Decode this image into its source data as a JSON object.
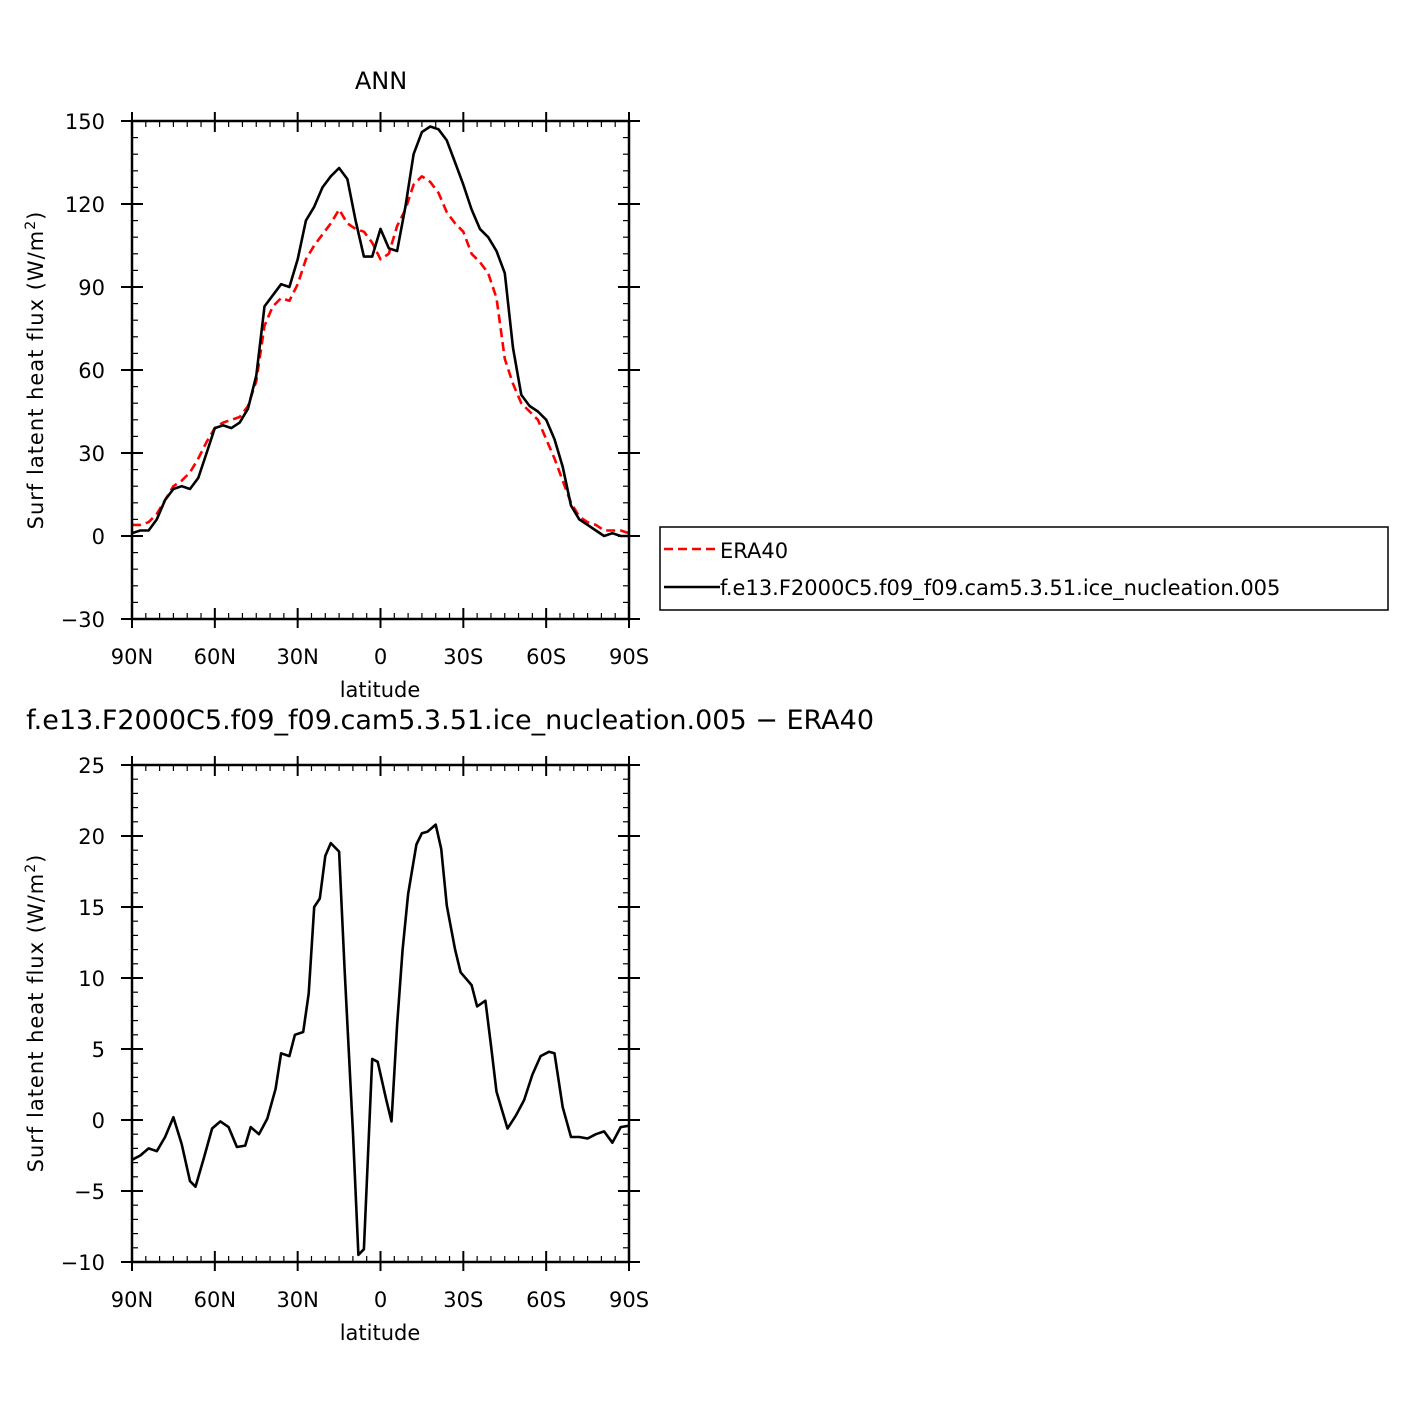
{
  "chart_data": [
    {
      "type": "line",
      "title": "ANN",
      "xlabel": "latitude",
      "ylabel": "Surf latent heat flux (W/m",
      "ylabel_sup": "2",
      "ylabel_tail": ")",
      "xlim": [
        90,
        -90
      ],
      "ylim": [
        -30,
        150
      ],
      "x_ticks": [
        {
          "value": 90,
          "label": "90N"
        },
        {
          "value": 60,
          "label": "60N"
        },
        {
          "value": 30,
          "label": "30N"
        },
        {
          "value": 0,
          "label": "0"
        },
        {
          "value": -30,
          "label": "30S"
        },
        {
          "value": -60,
          "label": "60S"
        },
        {
          "value": -90,
          "label": "90S"
        }
      ],
      "y_ticks": [
        {
          "value": 150,
          "label": "150"
        },
        {
          "value": 120,
          "label": "120"
        },
        {
          "value": 90,
          "label": "90"
        },
        {
          "value": 60,
          "label": "60"
        },
        {
          "value": 30,
          "label": "30"
        },
        {
          "value": 0,
          "label": "0"
        },
        {
          "value": -30,
          "label": "−30"
        }
      ],
      "series": [
        {
          "name": "ERA40",
          "color": "#ff0000",
          "dash": "dashed",
          "x": [
            90,
            87,
            84,
            81,
            78,
            75,
            72,
            69,
            66,
            63,
            60,
            57,
            54,
            51,
            48,
            45,
            42,
            39,
            36,
            33,
            30,
            27,
            24,
            21,
            18,
            15,
            12,
            9,
            6,
            3,
            0,
            -3,
            -6,
            -9,
            -12,
            -15,
            -18,
            -21,
            -24,
            -27,
            -30,
            -33,
            -36,
            -39,
            -42,
            -45,
            -48,
            -51,
            -54,
            -57,
            -60,
            -63,
            -66,
            -69,
            -72,
            -75,
            -78,
            -81,
            -84,
            -87,
            -90
          ],
          "values": [
            4,
            4,
            5,
            8,
            13,
            18,
            20,
            23,
            28,
            34,
            39,
            41,
            42,
            43,
            47,
            56,
            76,
            83,
            86,
            85,
            91,
            100,
            105,
            109,
            113,
            118,
            113,
            111,
            110,
            106,
            100,
            102,
            112,
            118,
            127,
            130,
            128,
            124,
            117,
            113,
            110,
            102,
            99,
            95,
            86,
            64,
            55,
            48,
            45,
            42,
            35,
            28,
            20,
            12,
            7,
            5,
            4,
            2,
            2,
            2,
            1
          ]
        },
        {
          "name": "f.e13.F2000C5.f09_f09.cam5.3.51.ice_nucleation.005",
          "color": "#000000",
          "dash": "solid",
          "x": [
            90,
            87,
            84,
            81,
            78,
            75,
            72,
            69,
            66,
            63,
            60,
            57,
            54,
            51,
            48,
            45,
            42,
            39,
            36,
            33,
            30,
            27,
            24,
            21,
            18,
            15,
            12,
            9,
            6,
            3,
            0,
            -3,
            -6,
            -9,
            -12,
            -15,
            -18,
            -21,
            -24,
            -27,
            -30,
            -33,
            -36,
            -39,
            -42,
            -45,
            -48,
            -51,
            -54,
            -57,
            -60,
            -63,
            -66,
            -69,
            -72,
            -75,
            -78,
            -81,
            -84,
            -87,
            -90
          ],
          "values": [
            1,
            2,
            2,
            6,
            13,
            17,
            18,
            17,
            21,
            30,
            39,
            40,
            39,
            41,
            46,
            58,
            83,
            87,
            91,
            90,
            100,
            114,
            119,
            126,
            130,
            133,
            129,
            114,
            101,
            101,
            111,
            104,
            103,
            119,
            138,
            146,
            148,
            147,
            143,
            135,
            127,
            118,
            111,
            108,
            103,
            95,
            68,
            51,
            47,
            45,
            42,
            35,
            25,
            11,
            6,
            4,
            2,
            0,
            1,
            0,
            0
          ]
        }
      ],
      "legend": {
        "placement": "right-of-plot"
      }
    },
    {
      "type": "line",
      "title": "f.e13.F2000C5.f09_f09.cam5.3.51.ice_nucleation.005 − ERA40",
      "xlabel": "latitude",
      "ylabel": "Surf latent heat flux (W/m",
      "ylabel_sup": "2",
      "ylabel_tail": ")",
      "xlim": [
        90,
        -90
      ],
      "ylim": [
        -10,
        25
      ],
      "x_ticks": [
        {
          "value": 90,
          "label": "90N"
        },
        {
          "value": 60,
          "label": "60N"
        },
        {
          "value": 30,
          "label": "30N"
        },
        {
          "value": 0,
          "label": "0"
        },
        {
          "value": -30,
          "label": "30S"
        },
        {
          "value": -60,
          "label": "60S"
        },
        {
          "value": -90,
          "label": "90S"
        }
      ],
      "y_ticks": [
        {
          "value": 25,
          "label": "25"
        },
        {
          "value": 20,
          "label": "20"
        },
        {
          "value": 15,
          "label": "15"
        },
        {
          "value": 10,
          "label": "10"
        },
        {
          "value": 5,
          "label": "5"
        },
        {
          "value": 0,
          "label": "0"
        },
        {
          "value": -5,
          "label": "−5"
        },
        {
          "value": -10,
          "label": "−10"
        }
      ],
      "series": [
        {
          "color": "#000000",
          "dash": "solid",
          "x": [
            90,
            87,
            84,
            81,
            78,
            75,
            72,
            69,
            67,
            64,
            61,
            58,
            55,
            52,
            49,
            47,
            44,
            41,
            38,
            36,
            33,
            31,
            28,
            26,
            24,
            22,
            20,
            18,
            15,
            13,
            10,
            8,
            6,
            3,
            1,
            -2,
            -4,
            -6,
            -8,
            -10,
            -13,
            -15,
            -17,
            -20,
            -22,
            -24,
            -27,
            -29,
            -33,
            -35,
            -38,
            -40,
            -42,
            -44,
            -46,
            -49,
            -52,
            -55,
            -58,
            -61,
            -63,
            -66,
            -69,
            -72,
            -75,
            -78,
            -81,
            -84,
            -87,
            -90
          ],
          "values": [
            -2.8,
            -2.5,
            -2.0,
            -2.2,
            -1.2,
            0.2,
            -1.7,
            -4.3,
            -4.7,
            -2.7,
            -0.6,
            -0.1,
            -0.5,
            -1.9,
            -1.8,
            -0.5,
            -1.0,
            0.1,
            2.2,
            4.7,
            4.5,
            6.0,
            6.2,
            8.9,
            15.0,
            15.6,
            18.6,
            19.5,
            18.9,
            10.6,
            -0.8,
            -9.5,
            -9.1,
            4.3,
            4.1,
            1.5,
            -0.1,
            6.7,
            12.0,
            15.9,
            19.4,
            20.2,
            20.3,
            20.8,
            19.1,
            15.1,
            12.0,
            10.4,
            9.5,
            8.0,
            8.4,
            5.3,
            2.0,
            0.7,
            -0.6,
            0.3,
            1.4,
            3.2,
            4.5,
            4.8,
            4.7,
            0.9,
            -1.2,
            -1.2,
            -1.3,
            -1.0,
            -0.8,
            -1.6,
            -0.5,
            -0.4
          ]
        }
      ]
    }
  ]
}
